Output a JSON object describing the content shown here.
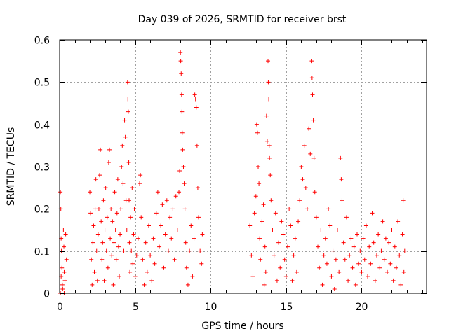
{
  "chart_data": {
    "type": "scatter",
    "title": "Day 039 of 2026, SRMTID for receiver brst",
    "xlabel": "GPS time / hours",
    "ylabel": "SRMTID / TECUs",
    "xlim": [
      0,
      24.3
    ],
    "ylim": [
      0,
      0.6
    ],
    "xticks": [
      0,
      5,
      10,
      15,
      20
    ],
    "xtick_labels": [
      "0",
      "5",
      "10",
      "15",
      "20"
    ],
    "yticks": [
      0,
      0.1,
      0.2,
      0.3,
      0.4,
      0.5,
      0.6
    ],
    "ytick_labels": [
      "0",
      "0.1",
      "0.2",
      "0.3",
      "0.4",
      "0.5",
      "0.6"
    ],
    "grid": true,
    "marker": "+",
    "color": "#ff0000",
    "series": [
      {
        "name": "SRMTID",
        "points": [
          [
            0.05,
            0.24
          ],
          [
            0.08,
            0.2
          ],
          [
            0.1,
            0.13
          ],
          [
            0.12,
            0.1
          ],
          [
            0.15,
            0.06
          ],
          [
            0.18,
            0.02
          ],
          [
            0.2,
            0.01
          ],
          [
            0.25,
            0.15
          ],
          [
            0.28,
            0.11
          ],
          [
            0.3,
            0.05
          ],
          [
            0.35,
            0.03
          ],
          [
            0.4,
            0.14
          ],
          [
            0.45,
            0.08
          ],
          [
            0.05,
            0.0
          ],
          [
            0.1,
            0.04
          ],
          [
            0.3,
            0.0
          ],
          [
            2.0,
            0.24
          ],
          [
            2.05,
            0.19
          ],
          [
            2.1,
            0.08
          ],
          [
            2.15,
            0.02
          ],
          [
            2.2,
            0.12
          ],
          [
            2.25,
            0.16
          ],
          [
            2.3,
            0.05
          ],
          [
            2.35,
            0.2
          ],
          [
            2.4,
            0.27
          ],
          [
            2.45,
            0.1
          ],
          [
            2.5,
            0.03
          ],
          [
            2.55,
            0.14
          ],
          [
            2.6,
            0.2
          ],
          [
            2.65,
            0.28
          ],
          [
            2.7,
            0.34
          ],
          [
            2.75,
            0.17
          ],
          [
            2.8,
            0.08
          ],
          [
            2.85,
            0.12
          ],
          [
            2.9,
            0.22
          ],
          [
            2.95,
            0.03
          ],
          [
            3.0,
            0.15
          ],
          [
            3.05,
            0.25
          ],
          [
            3.1,
            0.1
          ],
          [
            3.15,
            0.18
          ],
          [
            3.2,
            0.06
          ],
          [
            3.25,
            0.31
          ],
          [
            3.3,
            0.34
          ],
          [
            3.35,
            0.13
          ],
          [
            3.4,
            0.2
          ],
          [
            3.45,
            0.09
          ],
          [
            3.5,
            0.17
          ],
          [
            3.55,
            0.02
          ],
          [
            3.6,
            0.12
          ],
          [
            3.65,
            0.24
          ],
          [
            3.7,
            0.15
          ],
          [
            3.75,
            0.08
          ],
          [
            3.8,
            0.19
          ],
          [
            3.85,
            0.27
          ],
          [
            3.9,
            0.11
          ],
          [
            3.95,
            0.04
          ],
          [
            4.0,
            0.14
          ],
          [
            4.05,
            0.2
          ],
          [
            4.1,
            0.3
          ],
          [
            4.15,
            0.35
          ],
          [
            4.2,
            0.26
          ],
          [
            4.25,
            0.1
          ],
          [
            4.3,
            0.41
          ],
          [
            4.35,
            0.37
          ],
          [
            4.4,
            0.22
          ],
          [
            4.45,
            0.15
          ],
          [
            4.5,
            0.5
          ],
          [
            4.52,
            0.46
          ],
          [
            4.55,
            0.43
          ],
          [
            4.58,
            0.31
          ],
          [
            4.6,
            0.22
          ],
          [
            4.62,
            0.12
          ],
          [
            4.65,
            0.05
          ],
          [
            4.7,
            0.18
          ],
          [
            4.75,
            0.1
          ],
          [
            4.8,
            0.25
          ],
          [
            4.85,
            0.07
          ],
          [
            4.9,
            0.14
          ],
          [
            4.95,
            0.2
          ],
          [
            5.0,
            0.04
          ],
          [
            5.1,
            0.09
          ],
          [
            5.2,
            0.13
          ],
          [
            5.3,
            0.26
          ],
          [
            5.35,
            0.28
          ],
          [
            5.4,
            0.18
          ],
          [
            5.5,
            0.08
          ],
          [
            5.6,
            0.02
          ],
          [
            5.7,
            0.12
          ],
          [
            5.8,
            0.05
          ],
          [
            5.9,
            0.16
          ],
          [
            6.0,
            0.09
          ],
          [
            6.1,
            0.03
          ],
          [
            6.2,
            0.13
          ],
          [
            6.3,
            0.07
          ],
          [
            6.4,
            0.19
          ],
          [
            6.5,
            0.24
          ],
          [
            6.6,
            0.11
          ],
          [
            6.7,
            0.16
          ],
          [
            6.8,
            0.21
          ],
          [
            6.9,
            0.06
          ],
          [
            7.0,
            0.14
          ],
          [
            7.1,
            0.22
          ],
          [
            7.2,
            0.1
          ],
          [
            7.3,
            0.18
          ],
          [
            7.4,
            0.13
          ],
          [
            7.5,
            0.2
          ],
          [
            7.6,
            0.08
          ],
          [
            7.7,
            0.23
          ],
          [
            7.8,
            0.15
          ],
          [
            7.9,
            0.24
          ],
          [
            7.95,
            0.29
          ],
          [
            8.0,
            0.57
          ],
          [
            8.02,
            0.55
          ],
          [
            8.05,
            0.52
          ],
          [
            8.08,
            0.47
          ],
          [
            8.1,
            0.43
          ],
          [
            8.12,
            0.38
          ],
          [
            8.15,
            0.34
          ],
          [
            8.2,
            0.3
          ],
          [
            8.25,
            0.26
          ],
          [
            8.3,
            0.2
          ],
          [
            8.35,
            0.12
          ],
          [
            8.4,
            0.06
          ],
          [
            8.5,
            0.02
          ],
          [
            8.6,
            0.1
          ],
          [
            8.7,
            0.16
          ],
          [
            8.8,
            0.04
          ],
          [
            8.9,
            0.13
          ],
          [
            8.95,
            0.47
          ],
          [
            9.0,
            0.46
          ],
          [
            9.05,
            0.44
          ],
          [
            9.1,
            0.35
          ],
          [
            9.15,
            0.25
          ],
          [
            9.2,
            0.18
          ],
          [
            9.3,
            0.1
          ],
          [
            9.4,
            0.07
          ],
          [
            9.45,
            0.14
          ],
          [
            12.6,
            0.16
          ],
          [
            12.7,
            0.09
          ],
          [
            12.8,
            0.04
          ],
          [
            12.9,
            0.19
          ],
          [
            13.0,
            0.23
          ],
          [
            13.05,
            0.4
          ],
          [
            13.1,
            0.38
          ],
          [
            13.15,
            0.3
          ],
          [
            13.2,
            0.26
          ],
          [
            13.25,
            0.13
          ],
          [
            13.3,
            0.08
          ],
          [
            13.4,
            0.17
          ],
          [
            13.5,
            0.21
          ],
          [
            13.55,
            0.02
          ],
          [
            13.6,
            0.11
          ],
          [
            13.65,
            0.05
          ],
          [
            13.7,
            0.42
          ],
          [
            13.75,
            0.36
          ],
          [
            13.8,
            0.55
          ],
          [
            13.82,
            0.5
          ],
          [
            13.85,
            0.46
          ],
          [
            13.88,
            0.35
          ],
          [
            13.9,
            0.32
          ],
          [
            13.95,
            0.28
          ],
          [
            14.0,
            0.22
          ],
          [
            14.1,
            0.15
          ],
          [
            14.2,
            0.09
          ],
          [
            14.3,
            0.19
          ],
          [
            14.4,
            0.03
          ],
          [
            14.5,
            0.12
          ],
          [
            14.6,
            0.06
          ],
          [
            14.7,
            0.17
          ],
          [
            14.8,
            0.14
          ],
          [
            14.9,
            0.08
          ],
          [
            15.0,
            0.04
          ],
          [
            15.1,
            0.11
          ],
          [
            15.2,
            0.2
          ],
          [
            15.3,
            0.16
          ],
          [
            15.4,
            0.03
          ],
          [
            15.5,
            0.09
          ],
          [
            15.6,
            0.13
          ],
          [
            15.7,
            0.05
          ],
          [
            15.8,
            0.17
          ],
          [
            15.9,
            0.22
          ],
          [
            16.0,
            0.3
          ],
          [
            16.1,
            0.27
          ],
          [
            16.2,
            0.35
          ],
          [
            16.3,
            0.25
          ],
          [
            16.4,
            0.2
          ],
          [
            16.5,
            0.39
          ],
          [
            16.6,
            0.33
          ],
          [
            16.7,
            0.55
          ],
          [
            16.72,
            0.51
          ],
          [
            16.75,
            0.47
          ],
          [
            16.8,
            0.41
          ],
          [
            16.85,
            0.32
          ],
          [
            16.9,
            0.24
          ],
          [
            17.0,
            0.18
          ],
          [
            17.1,
            0.11
          ],
          [
            17.2,
            0.06
          ],
          [
            17.3,
            0.15
          ],
          [
            17.4,
            0.02
          ],
          [
            17.5,
            0.09
          ],
          [
            17.6,
            0.13
          ],
          [
            17.7,
            0.07
          ],
          [
            17.8,
            0.2
          ],
          [
            17.9,
            0.16
          ],
          [
            18.0,
            0.04
          ],
          [
            18.1,
            0.1
          ],
          [
            18.2,
            0.01
          ],
          [
            18.3,
            0.08
          ],
          [
            18.4,
            0.15
          ],
          [
            18.5,
            0.05
          ],
          [
            18.6,
            0.32
          ],
          [
            18.65,
            0.27
          ],
          [
            18.7,
            0.22
          ],
          [
            18.8,
            0.12
          ],
          [
            18.9,
            0.08
          ],
          [
            19.0,
            0.18
          ],
          [
            19.1,
            0.03
          ],
          [
            19.2,
            0.09
          ],
          [
            19.3,
            0.13
          ],
          [
            19.4,
            0.06
          ],
          [
            19.5,
            0.11
          ],
          [
            19.6,
            0.02
          ],
          [
            19.7,
            0.14
          ],
          [
            19.8,
            0.07
          ],
          [
            19.9,
            0.1
          ],
          [
            20.0,
            0.05
          ],
          [
            20.1,
            0.13
          ],
          [
            20.2,
            0.08
          ],
          [
            20.3,
            0.16
          ],
          [
            20.4,
            0.04
          ],
          [
            20.5,
            0.11
          ],
          [
            20.6,
            0.07
          ],
          [
            20.7,
            0.19
          ],
          [
            20.8,
            0.12
          ],
          [
            20.9,
            0.03
          ],
          [
            21.0,
            0.09
          ],
          [
            21.1,
            0.14
          ],
          [
            21.2,
            0.06
          ],
          [
            21.3,
            0.1
          ],
          [
            21.4,
            0.17
          ],
          [
            21.5,
            0.08
          ],
          [
            21.6,
            0.13
          ],
          [
            21.7,
            0.05
          ],
          [
            21.8,
            0.12
          ],
          [
            21.9,
            0.07
          ],
          [
            22.0,
            0.15
          ],
          [
            22.1,
            0.03
          ],
          [
            22.2,
            0.11
          ],
          [
            22.3,
            0.06
          ],
          [
            22.4,
            0.17
          ],
          [
            22.5,
            0.09
          ],
          [
            22.6,
            0.02
          ],
          [
            22.7,
            0.14
          ],
          [
            22.75,
            0.22
          ],
          [
            22.8,
            0.05
          ],
          [
            22.85,
            0.1
          ]
        ]
      }
    ]
  }
}
